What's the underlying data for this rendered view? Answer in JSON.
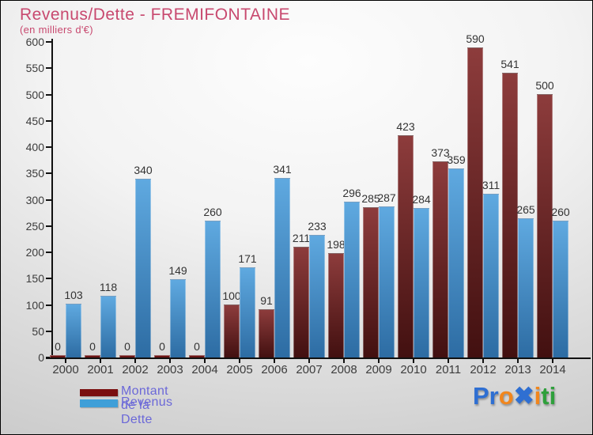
{
  "title": "Revenus/Dette - FREMIFONTAINE",
  "subtitle": "(en milliers d'€)",
  "colors": {
    "title": "#c8496f",
    "legend_text": "#6b68d8",
    "axis": "#111111",
    "tick_label": "#3c3c3c",
    "value_label": "#333333",
    "dette_top": "#8d3c3c",
    "dette_bottom": "#421010",
    "dette_zero": "#6b1414",
    "dette_legend": "#7a0f0f",
    "revenus_top": "#5fa9e0",
    "revenus_bottom": "#2d6ca3",
    "revenus_legend": "#3f9fd8"
  },
  "chart_data": {
    "type": "bar",
    "title": "Revenus/Dette - FREMIFONTAINE",
    "subtitle": "(en milliers d'€)",
    "categories": [
      "2000",
      "2001",
      "2002",
      "2003",
      "2004",
      "2005",
      "2006",
      "2007",
      "2008",
      "2009",
      "2010",
      "2011",
      "2012",
      "2013",
      "2014"
    ],
    "series": [
      {
        "name": "Montant de la Dette",
        "values": [
          0,
          0,
          0,
          0,
          0,
          100,
          91,
          211,
          198,
          285,
          423,
          373,
          590,
          541,
          500
        ]
      },
      {
        "name": "Revenus",
        "values": [
          103,
          118,
          340,
          149,
          260,
          171,
          341,
          233,
          296,
          287,
          284,
          359,
          311,
          265,
          260
        ]
      }
    ],
    "ylabel": "",
    "xlabel": "",
    "ylim": [
      0,
      600
    ],
    "ytick_step": 50,
    "grid": false,
    "value_labels": true,
    "legend_position": "bottom-left"
  },
  "legend": {
    "items": [
      {
        "label": "Montant de la Dette"
      },
      {
        "label": "Revenus"
      }
    ]
  },
  "logo": {
    "name": "Proxiti",
    "segments": [
      {
        "text": "Pr",
        "color": "#2f6fd2"
      },
      {
        "text": "o",
        "color": "#f1861d"
      },
      {
        "text": "✖",
        "color": "#2f6fd2"
      },
      {
        "text": "i",
        "color": "#f1861d"
      },
      {
        "text": "ti",
        "color": "#2fa03c"
      }
    ]
  }
}
